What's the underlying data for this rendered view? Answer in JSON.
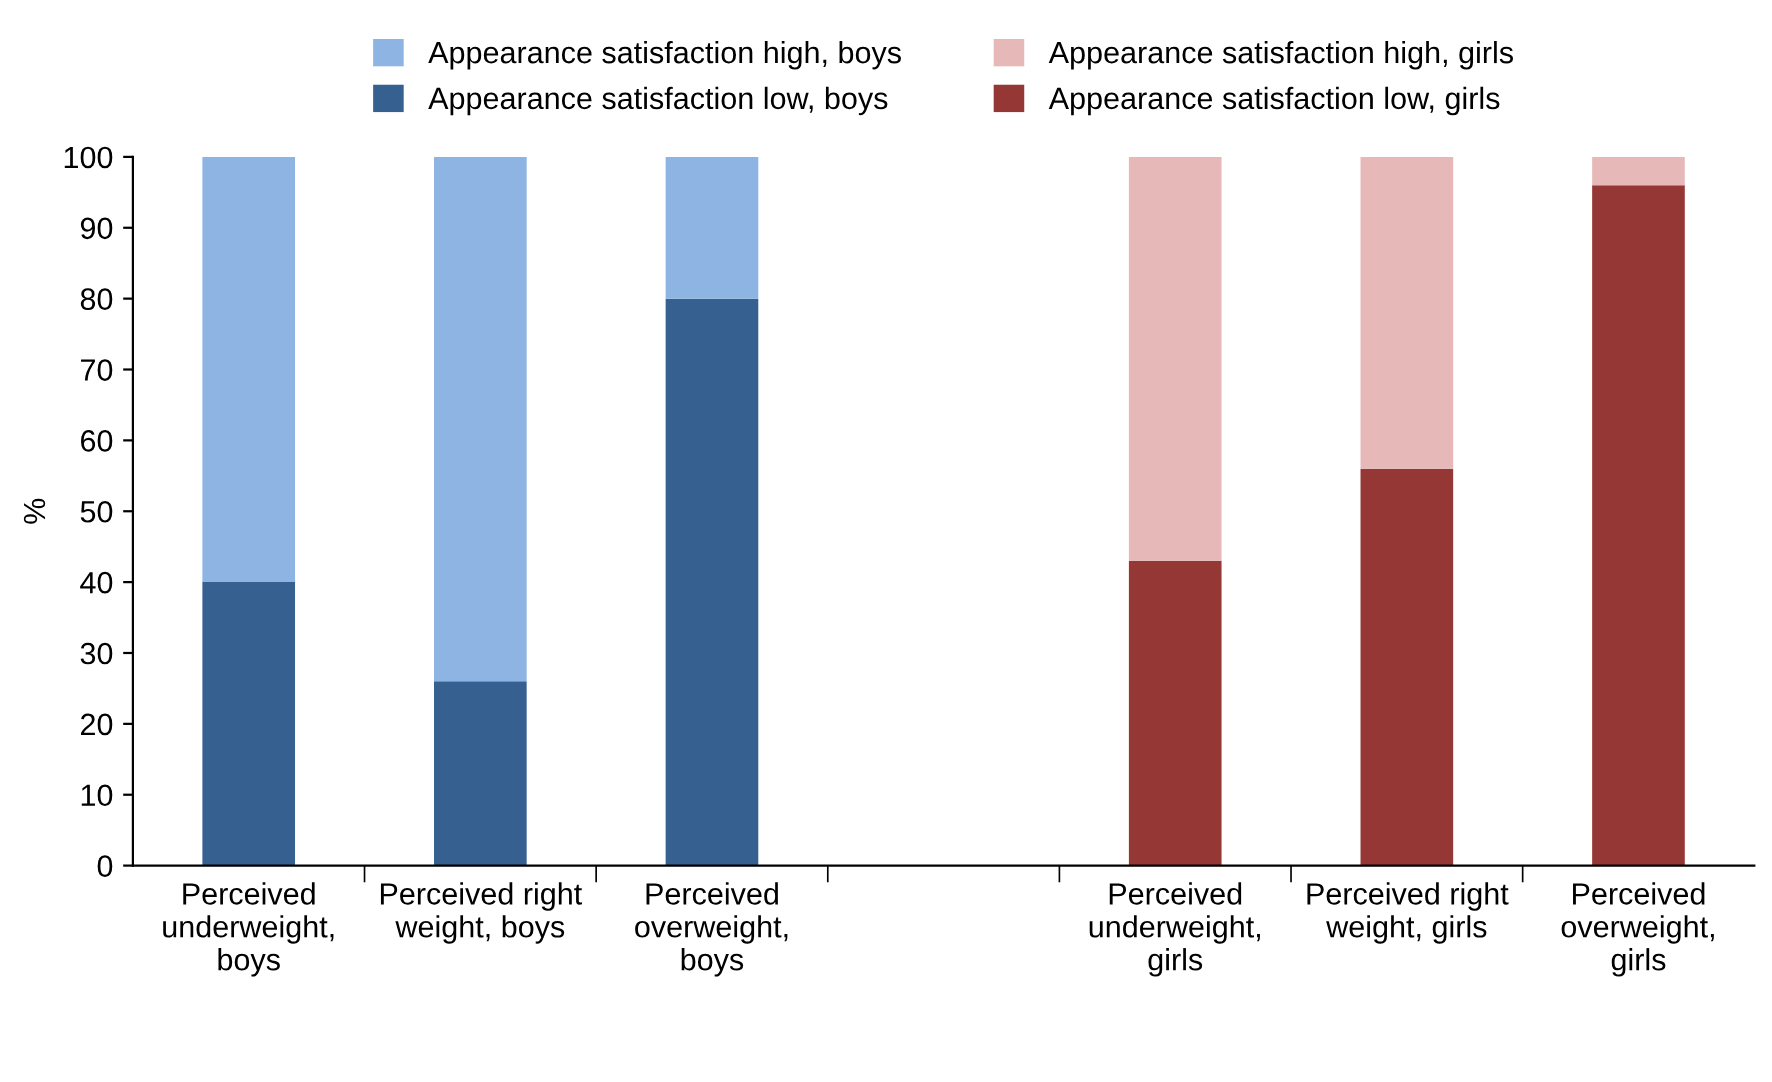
{
  "chart_data": {
    "type": "bar",
    "stacked": true,
    "ylabel": "%",
    "categories": [
      "Perceived\nunderweight,\nboys",
      "Perceived right\nweight, boys",
      "Perceived\noverweight,\nboys",
      null,
      "Perceived\nunderweight,\ngirls",
      "Perceived right\nweight, girls",
      "Perceived\noverweight,\ngirls"
    ],
    "series": [
      {
        "name": "Appearance satisfaction low, boys",
        "color": "#356090",
        "values": [
          40,
          26,
          80,
          null,
          null,
          null,
          null
        ]
      },
      {
        "name": "Appearance satisfaction high, boys",
        "color": "#8eb4e3",
        "values": [
          60,
          74,
          20,
          null,
          null,
          null,
          null
        ]
      },
      {
        "name": "Appearance satisfaction low, girls",
        "color": "#953735",
        "values": [
          null,
          null,
          null,
          null,
          43,
          56,
          96
        ]
      },
      {
        "name": "Appearance satisfaction high, girls",
        "color": "#e6b9b8",
        "values": [
          null,
          null,
          null,
          null,
          57,
          44,
          4
        ]
      }
    ],
    "ylim": [
      0,
      100
    ],
    "yticks": [
      0,
      10,
      20,
      30,
      40,
      50,
      60,
      70,
      80,
      90,
      100
    ],
    "grid": false,
    "legend": "top"
  }
}
